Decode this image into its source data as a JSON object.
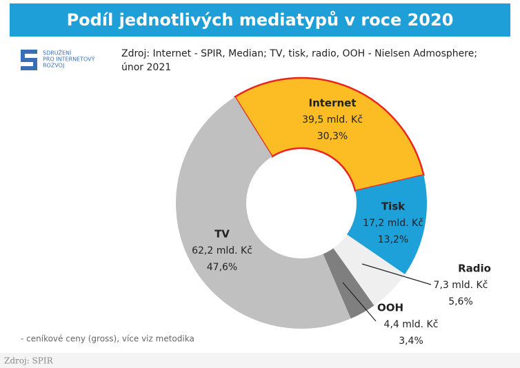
{
  "chart_data": {
    "type": "pie",
    "donut": true,
    "title": "Podíl jednotlivých mediatypů v roce 2020",
    "logo": [
      "SDRUŽENÍ",
      "PRO INTERNETOVÝ",
      "ROZVOJ"
    ],
    "source": [
      "Zdroj: Internet - SPIR, Median; TV, tisk, radio, OOH - Nielsen Admosphere;",
      "únor 2021"
    ],
    "note": "- ceníkové ceny (gross), více viz metodika",
    "footer": "Zdroj: SPIR",
    "categories": [
      "Internet",
      "Tisk",
      "Radio",
      "OOH",
      "TV"
    ],
    "values": [
      30.3,
      13.2,
      5.6,
      3.4,
      47.6
    ],
    "value_labels": [
      "30,3%",
      "13,2%",
      "5,6%",
      "3,4%",
      "47,6%"
    ],
    "amounts": [
      39.5,
      17.2,
      7.3,
      4.4,
      62.2
    ],
    "amount_labels": [
      "39,5 mld. Kč",
      "17,2 mld. Kč",
      "7,3 mld. Kč",
      "4,4 mld. Kč",
      "62,2 mld. Kč"
    ],
    "colors": [
      "#fbbc24",
      "#1ea0d8",
      "#efefef",
      "#7f7f7f",
      "#c0c0c0"
    ]
  }
}
